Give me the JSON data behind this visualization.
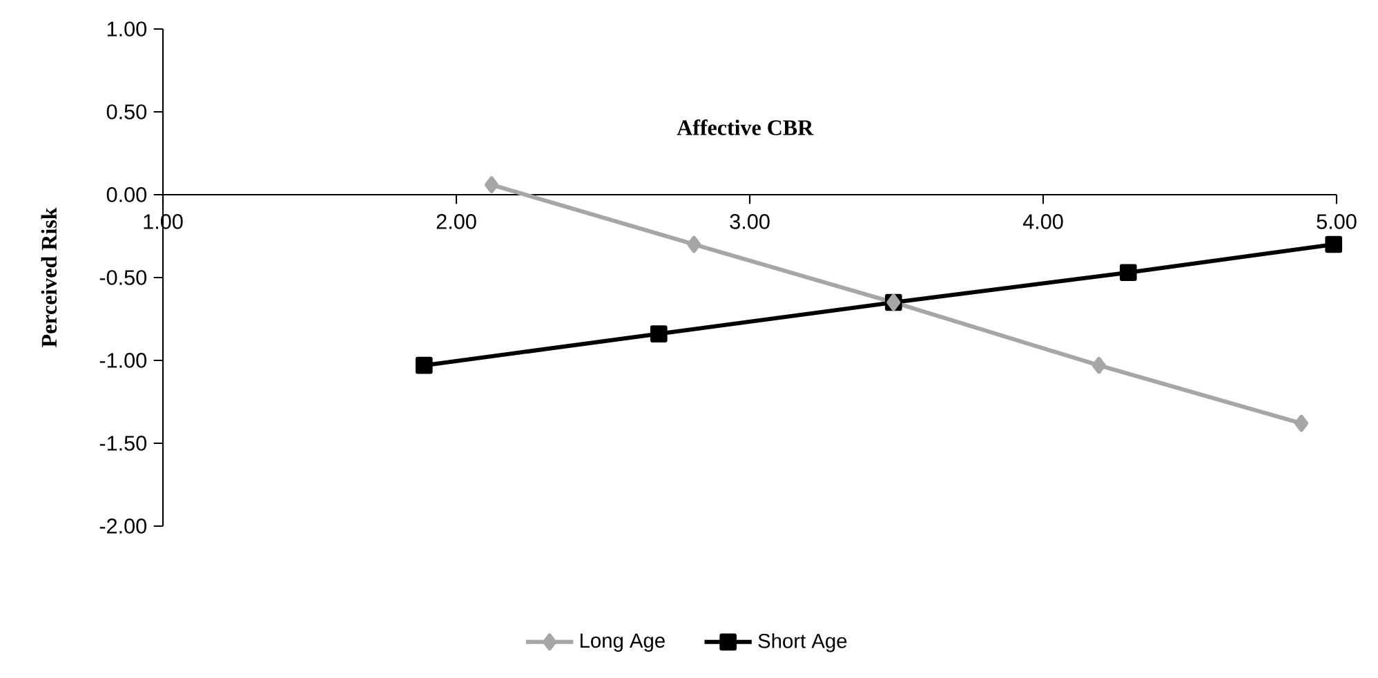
{
  "chart_data": {
    "type": "line",
    "title": "Affective CBR",
    "ylabel": "Perceived Risk",
    "xlim": [
      1,
      5
    ],
    "xticks": [
      {
        "value": 1,
        "label": "1.00"
      },
      {
        "value": 2,
        "label": "2.00"
      },
      {
        "value": 3,
        "label": "3.00"
      },
      {
        "value": 4,
        "label": "4.00"
      },
      {
        "value": 5,
        "label": "5.00"
      }
    ],
    "ylim": [
      -2,
      1
    ],
    "yticks": [
      {
        "value": -2,
        "label": "-2.00"
      },
      {
        "value": -1.5,
        "label": "-1.50"
      },
      {
        "value": -1,
        "label": "-1.00"
      },
      {
        "value": -0.5,
        "label": "-0.50"
      },
      {
        "value": 0,
        "label": "0.00"
      },
      {
        "value": 0.5,
        "label": "0.50"
      },
      {
        "value": 1,
        "label": "1.00"
      }
    ],
    "grid": false,
    "legend": "bottom",
    "line_style": "solid",
    "series": [
      {
        "name": "Long Age",
        "color": "#a6a6a6",
        "marker": "diamond",
        "x": [
          2.12,
          2.81,
          3.49,
          4.19,
          4.88
        ],
        "values": [
          0.06,
          -0.3,
          -0.65,
          -1.03,
          -1.38
        ]
      },
      {
        "name": "Short Age",
        "color": "#000000",
        "marker": "square",
        "x": [
          1.89,
          2.69,
          3.49,
          4.29,
          4.99
        ],
        "values": [
          -1.03,
          -0.84,
          -0.65,
          -0.47,
          -0.3
        ]
      }
    ]
  }
}
